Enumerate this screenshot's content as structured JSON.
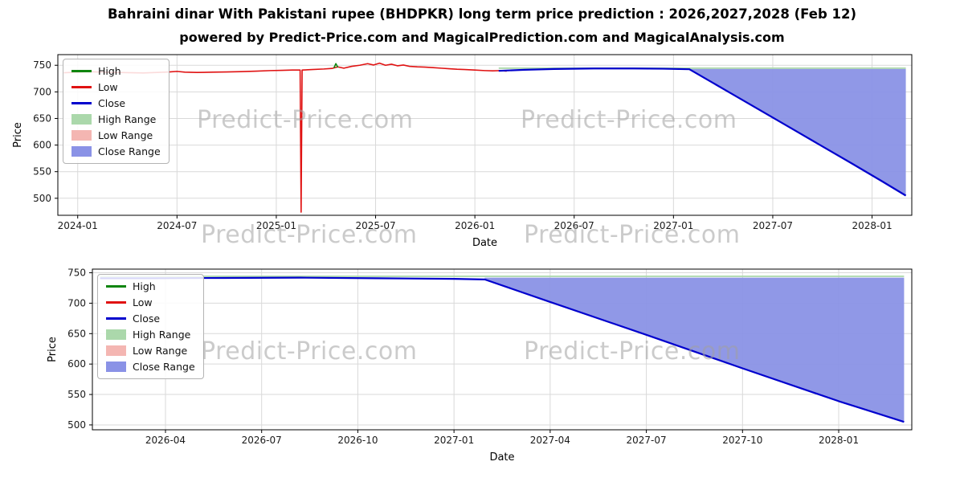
{
  "header": {
    "title": "Bahraini dinar With Pakistani rupee (BHDPKR) long term price prediction : 2026,2027,2028 (Feb 12)",
    "subtitle": "powered by Predict-Price.com and MagicalPrediction.com and MagicalAnalysis.com"
  },
  "watermark": {
    "text": "Predict-Price.com"
  },
  "legend": {
    "items": [
      "High",
      "Low",
      "Close",
      "High Range",
      "Low Range",
      "Close Range"
    ]
  },
  "colors": {
    "high": "#0f850f",
    "low": "#e01212",
    "close": "#0000cd",
    "high_range": "#abd8ab",
    "low_range": "#f4b6b2",
    "close_range": "#8a92e6",
    "grid": "#d9d9d9",
    "tick": "#1a1a1a"
  },
  "chart_data": [
    {
      "type": "line",
      "title": "",
      "xlabel": "Date",
      "ylabel": "Price",
      "legend_position": "upper left",
      "grid": true,
      "xlim": [
        2023.9,
        2028.2
      ],
      "ylim": [
        468,
        770
      ],
      "yticks": [
        500,
        550,
        600,
        650,
        700,
        750
      ],
      "xticks": [
        {
          "v": 2024.0,
          "label": "2024-01"
        },
        {
          "v": 2024.5,
          "label": "2024-07"
        },
        {
          "v": 2025.0,
          "label": "2025-01"
        },
        {
          "v": 2025.5,
          "label": "2025-07"
        },
        {
          "v": 2026.0,
          "label": "2026-01"
        },
        {
          "v": 2026.5,
          "label": "2026-07"
        },
        {
          "v": 2027.0,
          "label": "2027-01"
        },
        {
          "v": 2027.5,
          "label": "2027-07"
        },
        {
          "v": 2028.0,
          "label": "2028-01"
        }
      ],
      "areas": [
        {
          "name": "High Range",
          "color_key": "high_range",
          "upper": [
            [
              2026.12,
              746
            ],
            [
              2028.17,
              746
            ]
          ],
          "lower": [
            [
              2026.12,
              743
            ],
            [
              2028.17,
              743
            ]
          ]
        },
        {
          "name": "Close Range",
          "color_key": "close_range",
          "upper": [
            [
              2027.08,
              743
            ],
            [
              2028.17,
              743
            ]
          ],
          "lower": [
            [
              2027.08,
              742.5
            ],
            [
              2027.3,
              695
            ],
            [
              2027.6,
              630
            ],
            [
              2027.9,
              565
            ],
            [
              2028.05,
              532
            ],
            [
              2028.17,
              505
            ]
          ]
        }
      ],
      "series": [
        {
          "name": "Low",
          "color_key": "low",
          "width": 1.6,
          "points": [
            [
              2023.93,
              736
            ],
            [
              2024.0,
              737
            ],
            [
              2024.06,
              738
            ],
            [
              2024.12,
              737
            ],
            [
              2024.2,
              736.5
            ],
            [
              2024.28,
              736
            ],
            [
              2024.33,
              735.5
            ],
            [
              2024.4,
              736.5
            ],
            [
              2024.46,
              737.5
            ],
            [
              2024.5,
              738.5
            ],
            [
              2024.54,
              737
            ],
            [
              2024.6,
              736.5
            ],
            [
              2024.68,
              737
            ],
            [
              2024.75,
              737.5
            ],
            [
              2024.82,
              738
            ],
            [
              2024.9,
              739
            ],
            [
              2024.97,
              740
            ],
            [
              2025.03,
              740.5
            ],
            [
              2025.08,
              741
            ],
            [
              2025.12,
              741
            ],
            [
              2025.125,
              474
            ],
            [
              2025.13,
              741
            ],
            [
              2025.18,
              742
            ],
            [
              2025.24,
              743
            ],
            [
              2025.28,
              744
            ],
            [
              2025.31,
              747
            ],
            [
              2025.34,
              744.5
            ],
            [
              2025.38,
              748
            ],
            [
              2025.42,
              750
            ],
            [
              2025.46,
              753
            ],
            [
              2025.49,
              750.5
            ],
            [
              2025.52,
              754
            ],
            [
              2025.55,
              750
            ],
            [
              2025.58,
              752
            ],
            [
              2025.61,
              749
            ],
            [
              2025.64,
              750.5
            ],
            [
              2025.67,
              748
            ],
            [
              2025.71,
              747
            ],
            [
              2025.75,
              746.5
            ],
            [
              2025.79,
              745.5
            ],
            [
              2025.83,
              744.5
            ],
            [
              2025.87,
              743.5
            ],
            [
              2025.91,
              742.5
            ],
            [
              2025.95,
              742
            ],
            [
              2026.0,
              741
            ],
            [
              2026.05,
              740
            ],
            [
              2026.09,
              739.5
            ],
            [
              2026.13,
              740
            ],
            [
              2026.16,
              739
            ]
          ]
        },
        {
          "name": "High",
          "color_key": "high",
          "width": 1.6,
          "points": [
            [
              2025.29,
              745
            ],
            [
              2025.3,
              753
            ],
            [
              2025.31,
              746
            ]
          ]
        },
        {
          "name": "Close",
          "color_key": "close",
          "width": 2.2,
          "points": [
            [
              2026.12,
              739.5
            ],
            [
              2026.25,
              741.5
            ],
            [
              2026.4,
              743
            ],
            [
              2026.6,
              744
            ],
            [
              2026.8,
              744
            ],
            [
              2026.95,
              743.5
            ],
            [
              2027.08,
              742.5
            ],
            [
              2027.3,
              695
            ],
            [
              2027.6,
              630
            ],
            [
              2027.9,
              565
            ],
            [
              2028.05,
              532
            ],
            [
              2028.17,
              505
            ]
          ]
        }
      ]
    },
    {
      "type": "line",
      "title": "",
      "xlabel": "Date",
      "ylabel": "Price",
      "legend_position": "upper left",
      "grid": true,
      "xlim": [
        2026.06,
        2028.19
      ],
      "ylim": [
        492,
        756
      ],
      "yticks": [
        500,
        550,
        600,
        650,
        700,
        750
      ],
      "xticks": [
        {
          "v": 2026.25,
          "label": "2026-04"
        },
        {
          "v": 2026.5,
          "label": "2026-07"
        },
        {
          "v": 2026.75,
          "label": "2026-10"
        },
        {
          "v": 2027.0,
          "label": "2027-01"
        },
        {
          "v": 2027.25,
          "label": "2027-04"
        },
        {
          "v": 2027.5,
          "label": "2027-07"
        },
        {
          "v": 2027.75,
          "label": "2027-10"
        },
        {
          "v": 2028.0,
          "label": "2028-01"
        }
      ],
      "areas": [
        {
          "name": "High Range",
          "color_key": "high_range",
          "upper": [
            [
              2026.08,
              745.5
            ],
            [
              2028.17,
              745.5
            ]
          ],
          "lower": [
            [
              2026.08,
              743
            ],
            [
              2028.17,
              743
            ]
          ]
        },
        {
          "name": "Close Range",
          "color_key": "close_range",
          "upper": [
            [
              2027.08,
              742
            ],
            [
              2028.17,
              742
            ]
          ],
          "lower": [
            [
              2027.08,
              739
            ],
            [
              2027.25,
              702
            ],
            [
              2027.5,
              648
            ],
            [
              2027.75,
              593
            ],
            [
              2028.0,
              539
            ],
            [
              2028.17,
              505
            ]
          ]
        }
      ],
      "series": [
        {
          "name": "Close",
          "color_key": "close",
          "width": 2.2,
          "points": [
            [
              2026.08,
              741
            ],
            [
              2026.2,
              741
            ],
            [
              2026.4,
              741.5
            ],
            [
              2026.6,
              742
            ],
            [
              2026.8,
              741
            ],
            [
              2027.0,
              740
            ],
            [
              2027.08,
              739
            ],
            [
              2027.25,
              702
            ],
            [
              2027.5,
              648
            ],
            [
              2027.75,
              593
            ],
            [
              2028.0,
              539
            ],
            [
              2028.17,
              505
            ]
          ]
        }
      ]
    }
  ]
}
